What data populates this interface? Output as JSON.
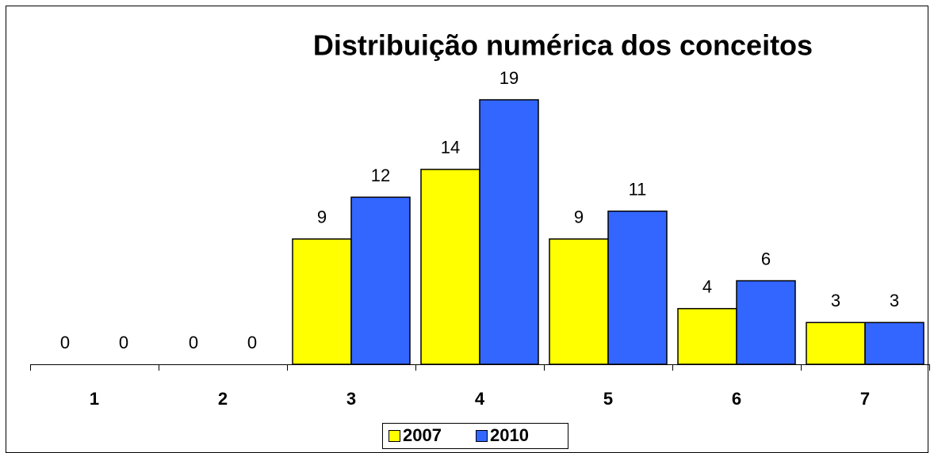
{
  "chart_data": {
    "type": "bar",
    "title": "Distribuição numérica dos conceitos",
    "categories": [
      "1",
      "2",
      "3",
      "4",
      "5",
      "6",
      "7"
    ],
    "series": [
      {
        "name": "2007",
        "color": "#ffff00",
        "values": [
          0,
          0,
          9,
          14,
          9,
          4,
          3
        ]
      },
      {
        "name": "2010",
        "color": "#3366ff",
        "values": [
          0,
          0,
          12,
          19,
          11,
          6,
          3
        ]
      }
    ]
  }
}
